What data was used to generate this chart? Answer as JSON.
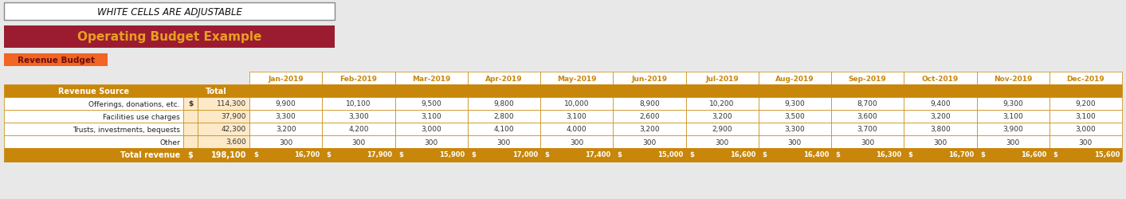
{
  "title_box_text": "WHITE CELLS ARE ADJUSTABLE",
  "banner_text": "Operating Budget Example",
  "banner_bg": "#9b1c31",
  "banner_text_color": "#e8a020",
  "revenue_budget_text": "Revenue Budget",
  "revenue_budget_bg": "#f26522",
  "months": [
    "Jan-2019",
    "Feb-2019",
    "Mar-2019",
    "Apr-2019",
    "May-2019",
    "Jun-2019",
    "Jul-2019",
    "Aug-2019",
    "Sep-2019",
    "Oct-2019",
    "Nov-2019",
    "Dec-2019"
  ],
  "header_bg": "#c8860a",
  "header_text_color": "#ffffff",
  "row_header_cols": [
    "Revenue Source",
    "Total"
  ],
  "rows": [
    {
      "label": "Offerings, donations, etc.",
      "dollar": "$",
      "total": "114,300",
      "values": [
        "9,900",
        "10,100",
        "9,500",
        "9,800",
        "10,000",
        "8,900",
        "10,200",
        "9,300",
        "8,700",
        "9,400",
        "9,300",
        "9,200"
      ]
    },
    {
      "label": "Facilities use charges",
      "dollar": "",
      "total": "37,900",
      "values": [
        "3,300",
        "3,300",
        "3,100",
        "2,800",
        "3,100",
        "2,600",
        "3,200",
        "3,500",
        "3,600",
        "3,200",
        "3,100",
        "3,100"
      ]
    },
    {
      "label": "Trusts, investments, bequests",
      "dollar": "",
      "total": "42,300",
      "values": [
        "3,200",
        "4,200",
        "3,000",
        "4,100",
        "4,000",
        "3,200",
        "2,900",
        "3,300",
        "3,700",
        "3,800",
        "3,900",
        "3,000"
      ]
    },
    {
      "label": "Other",
      "dollar": "",
      "total": "3,600",
      "values": [
        "300",
        "300",
        "300",
        "300",
        "300",
        "300",
        "300",
        "300",
        "300",
        "300",
        "300",
        "300"
      ]
    }
  ],
  "total_row": {
    "label": "Total revenue",
    "total": "198,100",
    "values": [
      "16,700",
      "17,900",
      "15,900",
      "17,000",
      "17,400",
      "15,000",
      "16,600",
      "16,400",
      "16,300",
      "16,700",
      "16,600",
      "15,600"
    ]
  },
  "bg_color": "#e8e8e8",
  "light_orange": "#fde9c8",
  "border_color": "#c8860a",
  "total_bg": "#c8860a"
}
